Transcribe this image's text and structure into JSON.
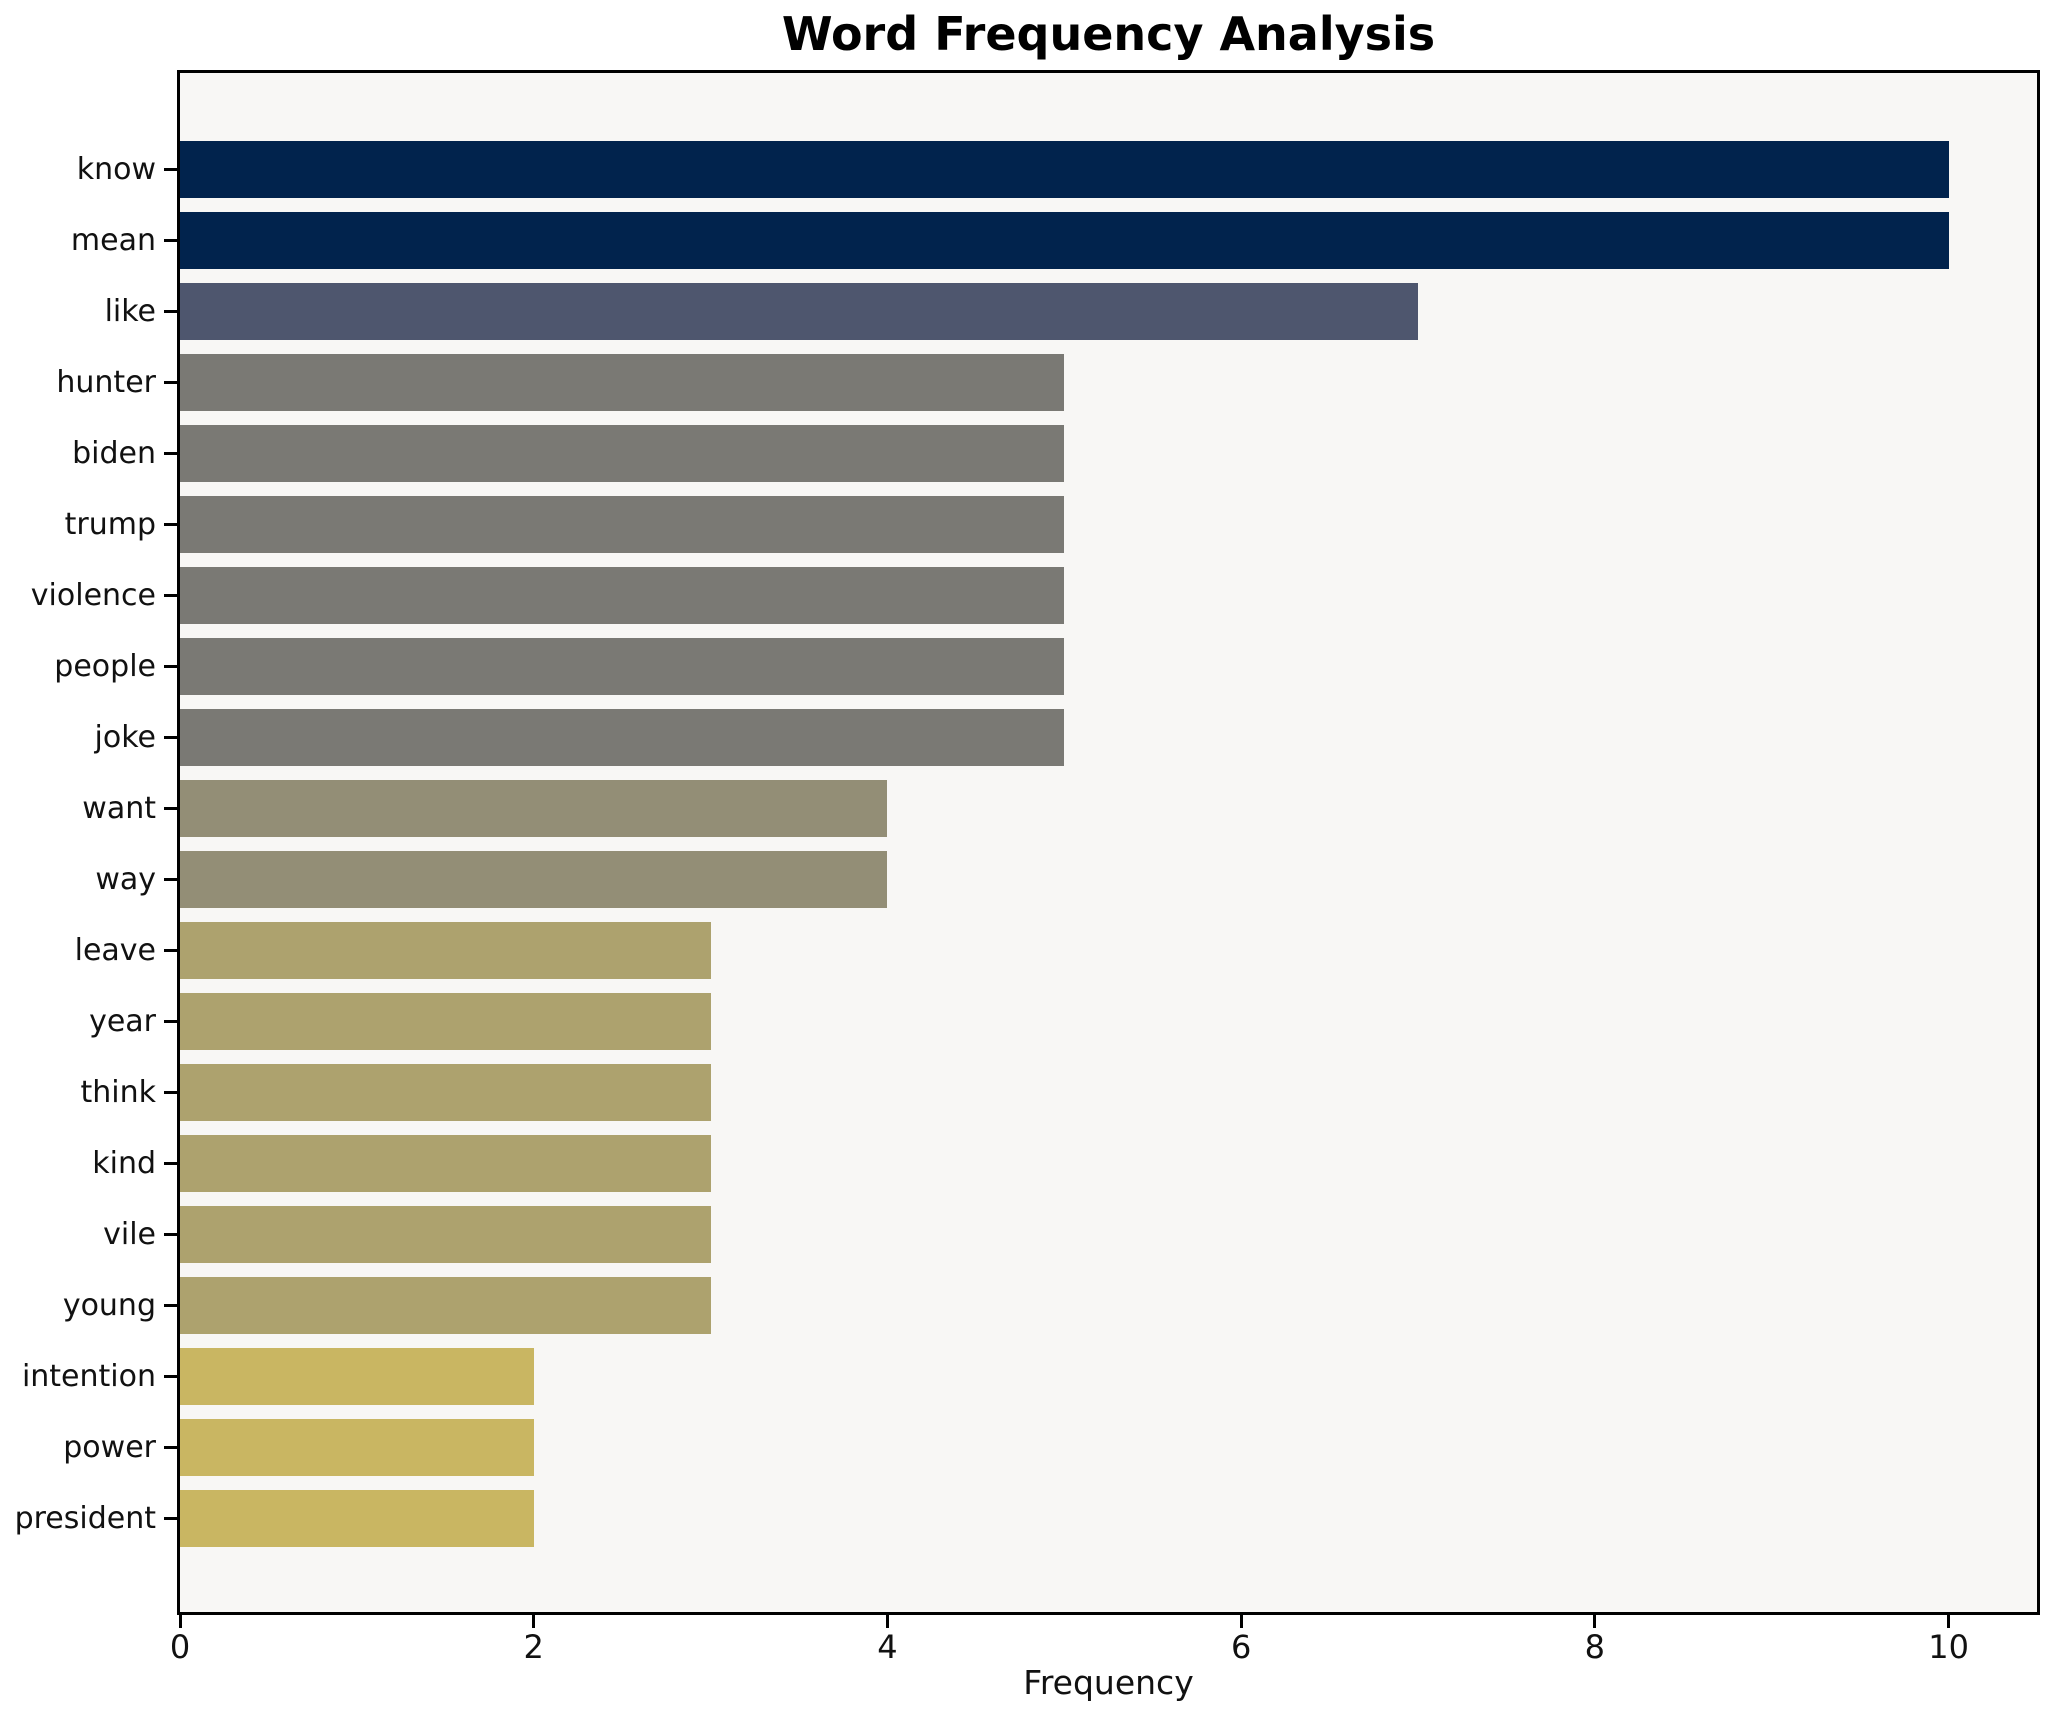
{
  "chart_data": {
    "type": "bar",
    "orientation": "horizontal",
    "title": "Word Frequency Analysis",
    "xlabel": "Frequency",
    "ylabel": "",
    "categories": [
      "know",
      "mean",
      "like",
      "hunter",
      "biden",
      "trump",
      "violence",
      "people",
      "joke",
      "want",
      "way",
      "leave",
      "year",
      "think",
      "kind",
      "vile",
      "young",
      "intention",
      "power",
      "president"
    ],
    "values": [
      10,
      10,
      7,
      5,
      5,
      5,
      5,
      5,
      5,
      4,
      4,
      3,
      3,
      3,
      3,
      3,
      3,
      2,
      2,
      2
    ],
    "xlim": [
      0,
      10.5
    ],
    "xticks": [
      0,
      2,
      4,
      6,
      8,
      10
    ],
    "grid": false,
    "legend": false,
    "colormap": "cividis",
    "bar_colors_by_value": {
      "10": "#01234d",
      "7": "#4e566e",
      "5": "#7a7974",
      "4": "#938e76",
      "3": "#ada26e",
      "2": "#c9b662"
    }
  },
  "style": {
    "figure_bg": "#ffffff",
    "plot_bg": "#f8f7f5",
    "axis_color": "#000000",
    "text_color": "#111111"
  }
}
